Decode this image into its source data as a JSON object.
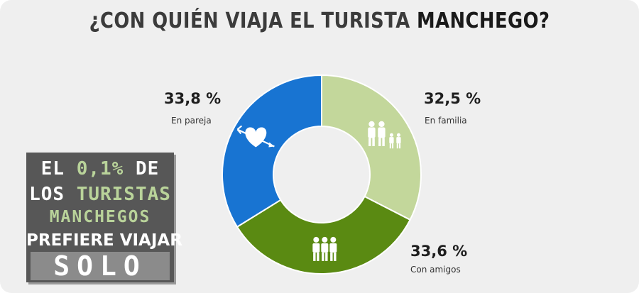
{
  "header": {
    "title_part1": "¿CON QUIÉN VIAJA EL TURISTA ",
    "title_part2": "MANCHEGO?"
  },
  "colors": {
    "familia": "#c3d79b",
    "amigos": "#5a8a12",
    "pareja": "#1874d2",
    "background": "#efefef",
    "box": "#575757"
  },
  "chart_data": {
    "type": "pie",
    "donut": true,
    "title": "¿CON QUIÉN VIAJA EL TURISTA MANCHEGO?",
    "series": [
      {
        "name": "En familia",
        "label": "32,5 %",
        "value": 32.5,
        "color": "#c3d79b",
        "icon": "family-icon"
      },
      {
        "name": "Con amigos",
        "label": "33,6 %",
        "value": 33.6,
        "color": "#5a8a12",
        "icon": "friends-icon"
      },
      {
        "name": "En pareja",
        "label": "33,8 %",
        "value": 33.8,
        "color": "#1874d2",
        "icon": "heart-arrow-icon"
      }
    ]
  },
  "callout": {
    "line1_a": "EL ",
    "line1_b": "0,1%",
    "line1_c": " DE",
    "line2_a": "LOS ",
    "line2_b": "TURISTAS",
    "line3": "MANCHEGOS",
    "line4": "PREFIERE VIAJAR",
    "line5": "SOLO"
  }
}
